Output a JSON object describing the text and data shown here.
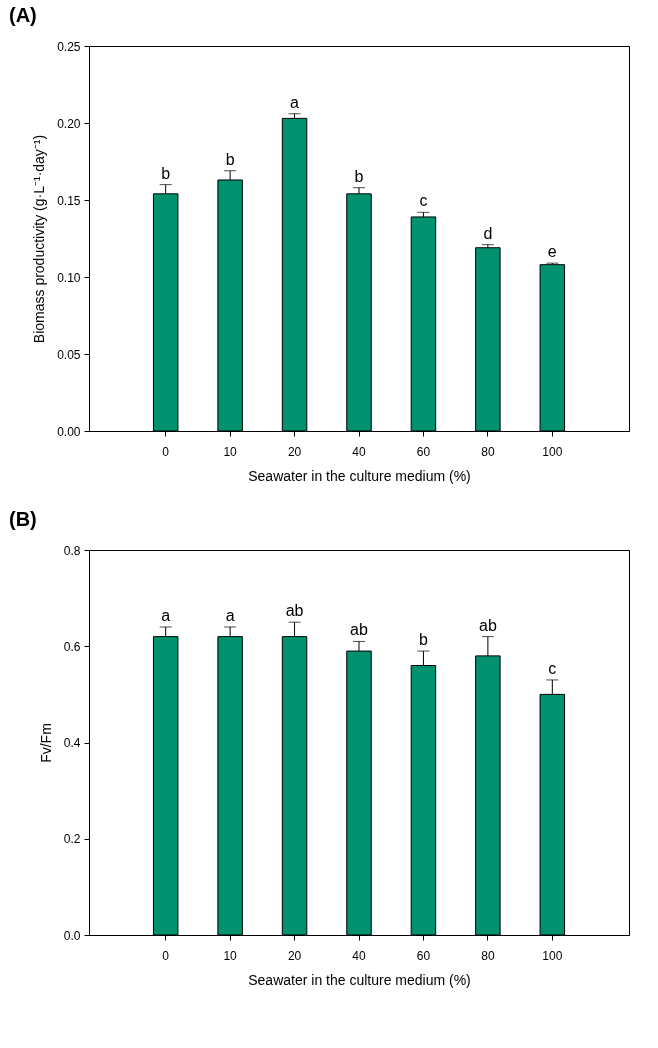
{
  "chart_data": [
    {
      "type": "bar",
      "title": "(A)",
      "xlabel": "Seawater in the culture medium (%)",
      "ylabel": "Biomass productivity (g·L⁻¹·day⁻¹)",
      "categories": [
        "0",
        "10",
        "20",
        "40",
        "60",
        "80",
        "100"
      ],
      "values": [
        0.154,
        0.163,
        0.203,
        0.154,
        0.139,
        0.119,
        0.108
      ],
      "errors": [
        0.006,
        0.006,
        0.003,
        0.004,
        0.003,
        0.002,
        0.001
      ],
      "color": "#00926e",
      "ylim": [
        0,
        0.25
      ],
      "yticks": [
        {
          "value": 0,
          "label": "0.00"
        },
        0.05,
        {
          "value": 0.1,
          "label": "0.10"
        },
        0.15,
        {
          "value": 0.2,
          "label": "0.20"
        },
        0.25
      ],
      "grid": false,
      "annotations": [
        {
          "text": "b",
          "x": "0",
          "y": 0.16
        },
        {
          "text": "b",
          "x": "10",
          "y": 0.169
        },
        {
          "text": "a",
          "x": "20",
          "y": 0.206
        },
        {
          "text": "b",
          "x": "40",
          "y": 0.158
        },
        {
          "text": "c",
          "x": "60",
          "y": 0.142
        },
        {
          "text": "d",
          "x": "80",
          "y": 0.121
        },
        {
          "text": "e",
          "x": "100",
          "y": 0.109
        }
      ]
    },
    {
      "type": "bar",
      "title": "(B)",
      "xlabel": "Seawater in the culture medium (%)",
      "ylabel": "Fv/Fm",
      "categories": [
        "0",
        "10",
        "20",
        "40",
        "60",
        "80",
        "100"
      ],
      "values": [
        0.62,
        0.62,
        0.62,
        0.59,
        0.56,
        0.58,
        0.5
      ],
      "errors": [
        0.02,
        0.02,
        0.03,
        0.02,
        0.03,
        0.04,
        0.03
      ],
      "color": "#00926e",
      "ylim": [
        0,
        0.8
      ],
      "yticks": [
        {
          "value": 0,
          "label": "0.0"
        },
        0.2,
        0.4,
        0.6,
        0.8
      ],
      "grid": false,
      "annotations": [
        {
          "text": "a",
          "x": "0",
          "y": 0.64
        },
        {
          "text": "a",
          "x": "10",
          "y": 0.64
        },
        {
          "text": "ab",
          "x": "20",
          "y": 0.65
        },
        {
          "text": "ab",
          "x": "40",
          "y": 0.61
        },
        {
          "text": "b",
          "x": "60",
          "y": 0.59
        },
        {
          "text": "ab",
          "x": "80",
          "y": 0.62
        },
        {
          "text": "c",
          "x": "100",
          "y": 0.53
        }
      ]
    }
  ]
}
